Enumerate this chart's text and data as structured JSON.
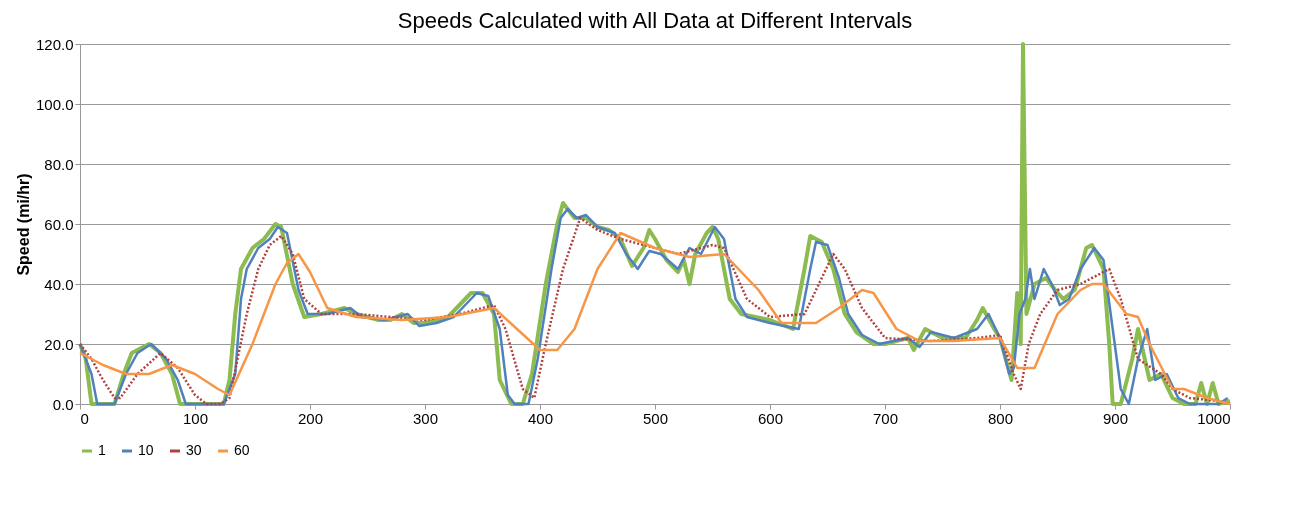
{
  "chart_data": {
    "type": "line",
    "title": "Speeds Calculated with All Data at Different Intervals",
    "ylabel": "Speed (mi/hr)",
    "xlim": [
      0,
      1000
    ],
    "xticks": [
      0,
      100,
      200,
      300,
      400,
      500,
      600,
      700,
      800,
      900,
      1000
    ],
    "ylim": [
      0,
      120
    ],
    "yticks": [
      {
        "value": 0,
        "label": "0.0"
      },
      {
        "value": 20,
        "label": "20.0"
      },
      {
        "value": 40,
        "label": "40.0"
      },
      {
        "value": 60,
        "label": "60.0"
      },
      {
        "value": 80,
        "label": "80.0"
      },
      {
        "value": 100,
        "label": "100.0"
      },
      {
        "value": 120,
        "label": "120.0"
      }
    ],
    "grid": "y",
    "legend": "bottom",
    "marker": "none",
    "series": [
      {
        "name": "1",
        "color": "#8cbb4f",
        "line_style": "solid",
        "x": [
          0,
          5,
          10,
          30,
          38,
          45,
          60,
          70,
          80,
          87,
          125,
          130,
          135,
          140,
          150,
          160,
          170,
          175,
          185,
          195,
          210,
          230,
          240,
          260,
          270,
          280,
          290,
          300,
          320,
          340,
          350,
          360,
          365,
          375,
          385,
          393,
          405,
          415,
          420,
          430,
          440,
          450,
          460,
          470,
          480,
          490,
          495,
          500,
          510,
          520,
          525,
          530,
          535,
          545,
          550,
          555,
          565,
          575,
          600,
          620,
          630,
          635,
          645,
          655,
          665,
          675,
          690,
          700,
          720,
          725,
          735,
          750,
          770,
          780,
          785,
          795,
          800,
          805,
          810,
          815,
          818,
          820,
          823,
          830,
          840,
          848,
          855,
          865,
          875,
          880,
          890,
          895,
          898,
          905,
          915,
          920,
          930,
          940,
          950,
          960,
          970,
          975,
          980,
          985,
          990,
          1000
        ],
        "values": [
          20,
          15,
          0,
          0,
          10,
          17,
          20,
          17,
          10,
          0,
          0,
          8,
          30,
          45,
          52,
          55,
          60,
          59,
          40,
          29,
          30,
          32,
          30,
          28,
          28,
          30,
          27,
          27,
          29,
          37,
          37,
          30,
          8,
          0,
          0,
          10,
          40,
          60,
          67,
          62,
          62,
          59,
          58,
          55,
          46,
          52,
          58,
          55,
          48,
          44,
          48,
          40,
          50,
          57,
          59,
          55,
          35,
          30,
          28,
          25,
          45,
          56,
          54,
          45,
          30,
          24,
          20,
          20,
          22,
          18,
          25,
          22,
          22,
          28,
          32,
          25,
          22,
          15,
          8,
          37,
          20,
          120,
          30,
          40,
          42,
          38,
          35,
          38,
          52,
          53,
          45,
          20,
          0,
          0,
          15,
          25,
          8,
          10,
          2,
          0,
          0,
          7,
          0,
          7,
          0,
          1
        ]
      },
      {
        "name": "10",
        "color": "#4f81bd",
        "line_style": "solid",
        "x": [
          0,
          10,
          15,
          30,
          40,
          50,
          62,
          75,
          85,
          92,
          125,
          135,
          140,
          145,
          155,
          165,
          172,
          180,
          190,
          198,
          215,
          235,
          245,
          265,
          285,
          295,
          310,
          325,
          345,
          355,
          365,
          372,
          378,
          390,
          398,
          410,
          418,
          424,
          432,
          440,
          450,
          465,
          475,
          485,
          495,
          505,
          520,
          530,
          540,
          552,
          560,
          570,
          580,
          600,
          625,
          635,
          640,
          650,
          660,
          668,
          680,
          695,
          720,
          730,
          740,
          760,
          780,
          790,
          800,
          808,
          812,
          817,
          822,
          826,
          830,
          838,
          845,
          852,
          860,
          870,
          882,
          890,
          898,
          905,
          912,
          920,
          928,
          935,
          945,
          955,
          965,
          990,
          998
        ],
        "values": [
          20,
          10,
          0,
          0,
          10,
          17,
          20,
          15,
          8,
          0,
          0,
          10,
          35,
          45,
          52,
          55,
          59,
          57,
          38,
          30,
          30,
          32,
          29,
          28,
          30,
          26,
          27,
          29,
          37,
          36,
          25,
          3,
          0,
          0,
          15,
          45,
          62,
          65,
          62,
          63,
          59,
          57,
          50,
          45,
          51,
          50,
          45,
          52,
          50,
          59,
          55,
          35,
          29,
          27,
          25,
          45,
          54,
          53,
          42,
          30,
          23,
          20,
          22,
          19,
          24,
          22,
          25,
          30,
          22,
          10,
          12,
          30,
          35,
          45,
          35,
          45,
          40,
          33,
          35,
          45,
          52,
          48,
          25,
          5,
          0,
          15,
          25,
          8,
          10,
          2,
          0,
          0,
          2
        ]
      },
      {
        "name": "30",
        "color": "#b0413e",
        "line_style": "dotted",
        "x": [
          0,
          10,
          20,
          30,
          35,
          50,
          70,
          85,
          100,
          110,
          122,
          130,
          145,
          155,
          165,
          175,
          185,
          195,
          210,
          240,
          270,
          300,
          330,
          360,
          370,
          385,
          395,
          405,
          420,
          435,
          450,
          470,
          500,
          520,
          550,
          560,
          580,
          600,
          630,
          655,
          665,
          680,
          700,
          740,
          780,
          800,
          812,
          818,
          825,
          835,
          850,
          870,
          895,
          905,
          920,
          940,
          950,
          965,
          990,
          1000
        ],
        "values": [
          20,
          15,
          8,
          2,
          2,
          10,
          17,
          12,
          3,
          0,
          0,
          2,
          30,
          45,
          53,
          56,
          50,
          35,
          30,
          30,
          29,
          28,
          30,
          33,
          25,
          5,
          2,
          20,
          45,
          62,
          58,
          55,
          52,
          50,
          53,
          52,
          35,
          29,
          30,
          50,
          45,
          32,
          22,
          21,
          22,
          23,
          10,
          5,
          20,
          30,
          38,
          40,
          45,
          35,
          15,
          10,
          5,
          2,
          1,
          0
        ]
      },
      {
        "name": "60",
        "color": "#f79646",
        "line_style": "solid",
        "x": [
          0,
          20,
          40,
          60,
          80,
          100,
          120,
          130,
          150,
          170,
          180,
          190,
          200,
          215,
          240,
          280,
          320,
          360,
          380,
          400,
          415,
          430,
          450,
          470,
          500,
          530,
          560,
          590,
          610,
          640,
          660,
          680,
          690,
          710,
          730,
          760,
          800,
          815,
          830,
          850,
          870,
          880,
          890,
          910,
          920,
          930,
          950,
          960,
          980,
          1000
        ],
        "values": [
          17,
          13,
          10,
          10,
          13,
          10,
          5,
          3,
          20,
          40,
          47,
          50,
          44,
          32,
          29,
          28,
          29,
          32,
          25,
          18,
          18,
          25,
          45,
          57,
          52,
          49,
          50,
          38,
          27,
          27,
          32,
          38,
          37,
          25,
          21,
          21,
          22,
          12,
          12,
          30,
          38,
          40,
          40,
          30,
          29,
          20,
          5,
          5,
          2,
          0
        ]
      }
    ]
  }
}
